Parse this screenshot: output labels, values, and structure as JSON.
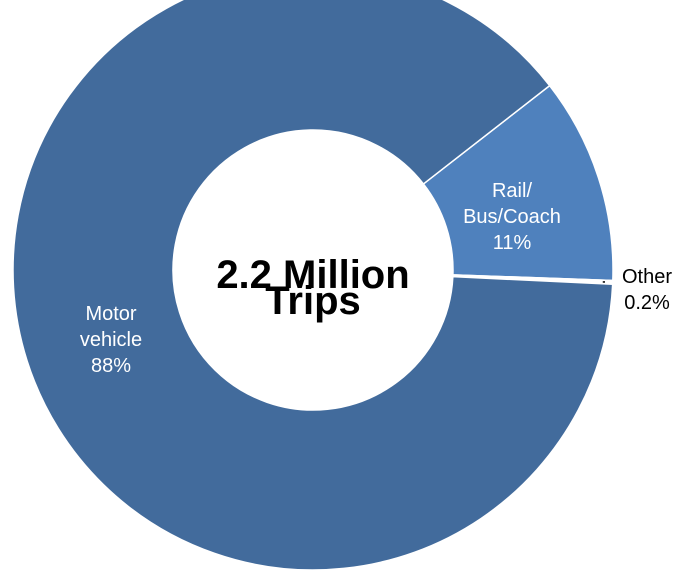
{
  "chart_data": {
    "type": "pie",
    "style": "donut",
    "center_label": [
      "2.2 Million",
      "Trips"
    ],
    "slices": [
      {
        "label": [
          "Rail/",
          "Bus/Coach"
        ],
        "value": 11,
        "display": "11%",
        "color": "#4f81bd"
      },
      {
        "label": [
          "Other"
        ],
        "value": 0.2,
        "display": "0.2%",
        "color": "#ffffff"
      },
      {
        "label": [
          "Motor",
          "vehicle"
        ],
        "value": 88,
        "display": "88%",
        "color": "#426b9c"
      }
    ],
    "slice_border_color": "#ffffff",
    "leader_line_for": "Other"
  }
}
